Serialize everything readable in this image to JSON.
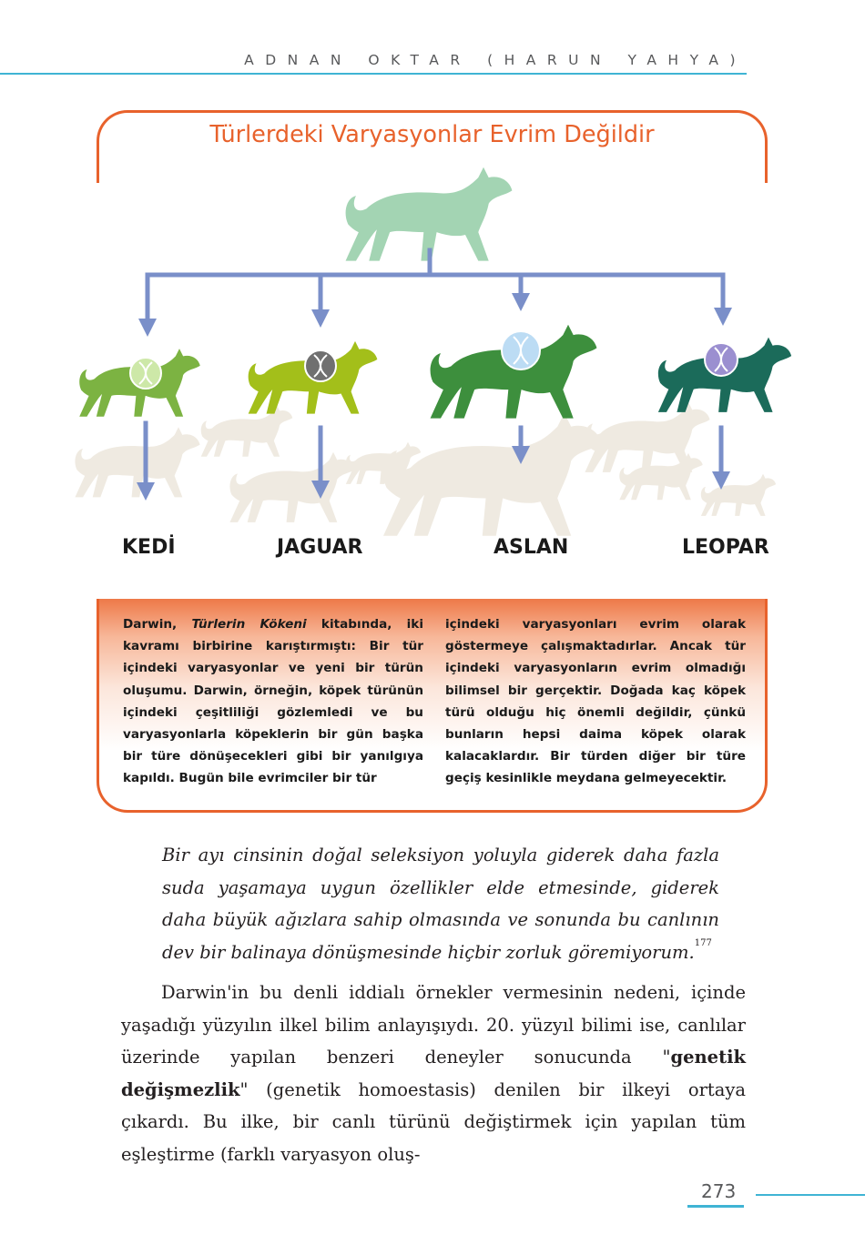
{
  "header": {
    "running_title": "ADNAN OKTAR (HARUN YAHYA)"
  },
  "figure": {
    "title": "Türlerdeki Varyasyonlar Evrim Değildir",
    "labels": [
      "KEDİ",
      "JAGUAR",
      "ASLAN",
      "LEOPAR"
    ],
    "colors": {
      "accent": "#e8622c",
      "arrow": "#7a8fc9",
      "ancestor": "#a3d4b3"
    }
  },
  "caption": {
    "col1_pre": "Darwin, ",
    "col1_italic": "Türlerin Kökeni",
    "col1_post": " kitabında, iki kavramı birbirine karıştırmıştı: Bir tür içindeki varyasyonlar ve yeni bir türün oluşumu. Darwin, örneğin, köpek türünün içindeki çeşitliliği gözlemledi ve bu varyasyonlarla köpeklerin bir gün başka bir türe dönüşecekleri gibi bir yanılgıya kapıldı. Bugün bile evrimciler bir tür",
    "col2": "içindeki varyasyonları evrim olarak göstermeye çalışmaktadırlar. Ancak tür içindeki varyasyonların evrim olmadığı bilimsel bir gerçektir. Doğada kaç köpek türü olduğu hiç önemli değildir, çünkü bunların hepsi daima köpek olarak kalacaklardır. Bir türden diğer bir türe geçiş kesinlikle meydana gelmeyecektir."
  },
  "quote": {
    "text": "Bir ayı cinsinin doğal seleksiyon yoluyla giderek daha fazla suda yaşamaya uygun özellikler elde etmesinde, giderek daha büyük ağızlara sahip olmasında ve sonunda bu canlının dev bir balinaya dönüşmesinde hiçbir zorluk göremiyorum.",
    "footnote": "177"
  },
  "body": {
    "text_1": "Darwin'in bu denli iddialı örnekler vermesinin nedeni, içinde yaşadığı yüzyılın ilkel bilim anlayışıydı. 20. yüzyıl bilimi ise, canlılar üzerinde yapılan benzeri deneyler sonucunda \"",
    "bold": "genetik değişmezlik",
    "text_2": "\" (genetik homoestasis) denilen bir ilkeyi ortaya çıkardı. Bu ilke, bir canlı türünü değiştirmek için yapılan tüm eşleştirme (farklı varyasyon oluş-"
  },
  "footer": {
    "page_number": "273"
  }
}
